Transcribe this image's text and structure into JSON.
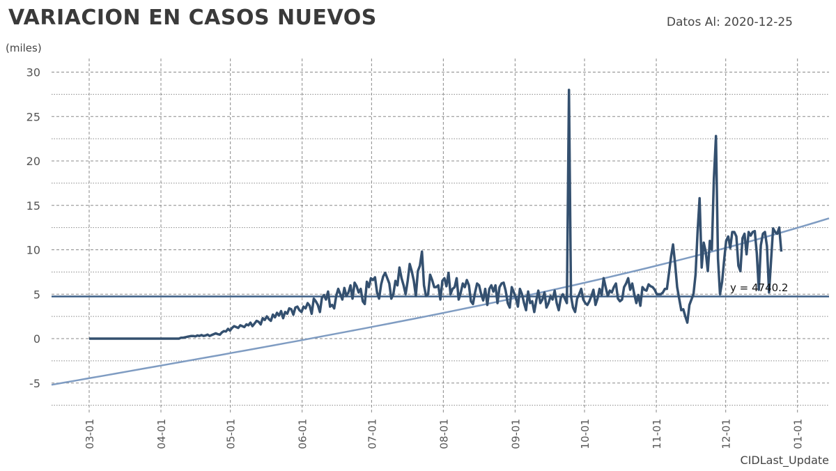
{
  "header": {
    "title": "VARIACION EN CASOS NUEVOS",
    "date_label": "Datos Al: 2020-12-25",
    "unit_label": "(miles)"
  },
  "footer": {
    "source": "CIDLast_Update"
  },
  "colors": {
    "series": "#34506f",
    "trend": "#7f9cc2",
    "mean": "#3d5f86",
    "grid": "#888888"
  },
  "chart_data": {
    "type": "line",
    "title": "VARIACION EN CASOS NUEVOS",
    "ylabel": "(miles)",
    "xlabel": "",
    "ylim": [
      -7.5,
      30
    ],
    "yticks": [
      -5,
      0,
      5,
      10,
      15,
      20,
      25,
      30
    ],
    "xticks": [
      "03-01",
      "04-01",
      "05-01",
      "06-01",
      "07-01",
      "08-01",
      "09-01",
      "10-01",
      "11-01",
      "12-01",
      "01-01"
    ],
    "grid": true,
    "series": [
      {
        "type": "line",
        "x_start": "2020-03-01",
        "x_end": "2020-12-25",
        "values": [
          0,
          0,
          0,
          0,
          0,
          0,
          0,
          0,
          0,
          0,
          0,
          0,
          0,
          0,
          0,
          0,
          0,
          0,
          0,
          0,
          0,
          0,
          0,
          0,
          0,
          0,
          0,
          0,
          0,
          0,
          0,
          0,
          0,
          0,
          0,
          0,
          0,
          0,
          0,
          0,
          0,
          0,
          0,
          0,
          0,
          0.1,
          0.1,
          0.15,
          0.2,
          0.25,
          0.3,
          0.3,
          0.25,
          0.35,
          0.3,
          0.4,
          0.3,
          0.35,
          0.45,
          0.3,
          0.4,
          0.5,
          0.6,
          0.5,
          0.45,
          0.7,
          0.85,
          0.8,
          1.1,
          0.9,
          1.2,
          1.4,
          1.3,
          1.2,
          1.5,
          1.4,
          1.3,
          1.6,
          1.5,
          1.8,
          1.4,
          1.7,
          2.0,
          1.9,
          1.6,
          2.3,
          2.1,
          2.5,
          2.2,
          2.0,
          2.7,
          2.4,
          2.9,
          2.6,
          3.1,
          2.3,
          3.0,
          2.8,
          3.4,
          3.3,
          2.7,
          3.5,
          3.6,
          3.2,
          3.0,
          3.6,
          3.4,
          4.0,
          3.7,
          2.8,
          4.5,
          4.2,
          3.8,
          3.0,
          4.6,
          4.9,
          4.4,
          5.3,
          3.6,
          3.8,
          3.4,
          4.8,
          5.6,
          5.0,
          4.4,
          5.7,
          4.8,
          5.2,
          6.0,
          4.5,
          6.3,
          5.9,
          5.2,
          5.6,
          4.2,
          3.9,
          6.4,
          5.8,
          6.8,
          6.6,
          6.9,
          5.2,
          4.5,
          6.1,
          7.0,
          7.4,
          6.8,
          6.2,
          4.5,
          5.0,
          6.5,
          6.0,
          8.0,
          6.8,
          6.0,
          5.0,
          6.5,
          8.4,
          7.6,
          6.5,
          4.8,
          7.6,
          8.2,
          9.8,
          6.0,
          4.8,
          5.0,
          7.2,
          6.6,
          5.8,
          5.8,
          6.0,
          4.4,
          6.5,
          6.8,
          5.9,
          7.4,
          5.0,
          5.6,
          5.8,
          6.8,
          4.4,
          5.2,
          6.2,
          5.8,
          6.6,
          6.0,
          4.2,
          3.9,
          5.2,
          6.2,
          6.0,
          5.0,
          4.3,
          5.6,
          3.8,
          5.6,
          6.0,
          5.3,
          6.0,
          4.0,
          5.8,
          6.2,
          6.3,
          5.4,
          4.0,
          3.5,
          5.8,
          5.2,
          4.6,
          3.6,
          5.6,
          5.0,
          4.0,
          3.2,
          5.3,
          4.0,
          4.2,
          3.0,
          4.3,
          5.4,
          4.0,
          4.4,
          5.2,
          3.5,
          4.0,
          4.8,
          4.4,
          5.4,
          4.0,
          3.2,
          4.6,
          5.0,
          4.5,
          4.0,
          28.0,
          4.8,
          3.5,
          3.0,
          4.5,
          5.0,
          5.6,
          4.4,
          4.0,
          3.8,
          4.2,
          4.8,
          5.5,
          3.8,
          4.5,
          5.6,
          4.9,
          6.8,
          5.8,
          4.8,
          5.4,
          5.2,
          5.8,
          6.2,
          4.5,
          4.2,
          4.4,
          5.8,
          6.2,
          6.8,
          5.5,
          6.2,
          5.0,
          4.0,
          4.9,
          3.7,
          5.8,
          5.5,
          5.4,
          6.1,
          5.9,
          5.8,
          5.5,
          5.0,
          5.0,
          5.0,
          5.2,
          5.6,
          5.6,
          7.4,
          9.2,
          10.6,
          8.4,
          5.8,
          4.5,
          3.2,
          3.3,
          2.5,
          1.8,
          3.8,
          4.4,
          5.0,
          7.2,
          12.0,
          15.8,
          8.0,
          10.8,
          9.8,
          7.6,
          11.0,
          10.0,
          18.0,
          22.8,
          9.0,
          5.0,
          6.4,
          8.8,
          11.0,
          11.5,
          10.2,
          12.0,
          12.0,
          11.5,
          8.2,
          7.6,
          11.3,
          11.8,
          9.5,
          12.0,
          11.6,
          12.0,
          12.1,
          9.6,
          5.5,
          10.5,
          11.8,
          12.0,
          10.4,
          5.2,
          8.8,
          12.4,
          12.0,
          11.8,
          12.5,
          9.8
        ]
      },
      {
        "type": "hline",
        "y": 4.7402
      },
      {
        "type": "trend",
        "values": [
          -5.2,
          12.3
        ]
      }
    ],
    "annotations": [
      {
        "text": "y = 4740.2"
      }
    ]
  }
}
